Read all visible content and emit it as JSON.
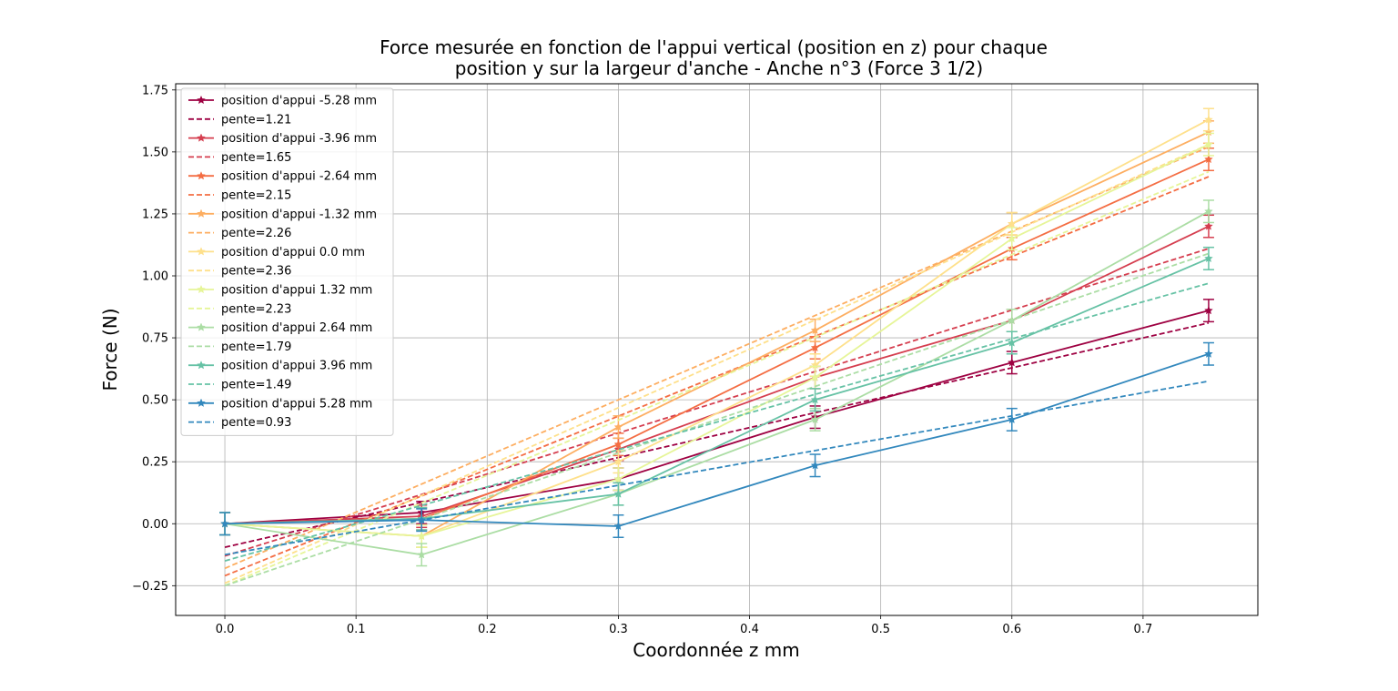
{
  "chart_data": {
    "type": "line",
    "title_lines": [
      "Force mesurée en fonction de l'appui vertical (position en z) pour chaque",
      "position y sur la largeur d'anche - Anche n°3 (Force 3 1/2)"
    ],
    "xlabel": "Coordonnée z mm",
    "ylabel": "Force (N)",
    "xlim": [
      -0.0375,
      0.7875
    ],
    "ylim": [
      -0.37,
      1.775
    ],
    "xticks": [
      0.0,
      0.1,
      0.2,
      0.3,
      0.4,
      0.5,
      0.6,
      0.7
    ],
    "xtick_labels": [
      "0.0",
      "0.1",
      "0.2",
      "0.3",
      "0.4",
      "0.5",
      "0.6",
      "0.7"
    ],
    "yticks": [
      -0.25,
      0.0,
      0.25,
      0.5,
      0.75,
      1.0,
      1.25,
      1.5,
      1.75
    ],
    "ytick_labels": [
      "−0.25",
      "0.00",
      "0.25",
      "0.50",
      "0.75",
      "1.00",
      "1.25",
      "1.50",
      "1.75"
    ],
    "grid": true,
    "legend_position": "upper-left",
    "x": [
      0.0,
      0.15,
      0.3,
      0.45,
      0.6,
      0.75
    ],
    "series": [
      {
        "name": "position d'appui -5.28 mm",
        "fit_label": "pente=1.21",
        "color": "#9e0142",
        "values": [
          0.0,
          0.045,
          0.18,
          0.43,
          0.65,
          0.86
        ],
        "errors": [
          0.045,
          0.045,
          0.045,
          0.045,
          0.045,
          0.045
        ],
        "fit": [
          -0.095,
          0.81
        ]
      },
      {
        "name": "position d'appui -3.96 mm",
        "fit_label": "pente=1.65",
        "color": "#d53e4f",
        "values": [
          0.0,
          0.03,
          0.3,
          0.59,
          0.82,
          1.2
        ],
        "errors": [
          0.045,
          0.045,
          0.045,
          0.045,
          0.045,
          0.045
        ],
        "fit": [
          -0.13,
          1.11
        ]
      },
      {
        "name": "position d'appui -2.64 mm",
        "fit_label": "pente=2.15",
        "color": "#f46d43",
        "values": [
          0.0,
          0.02,
          0.32,
          0.71,
          1.11,
          1.47
        ],
        "errors": [
          0.045,
          0.045,
          0.045,
          0.045,
          0.045,
          0.045
        ],
        "fit": [
          -0.21,
          1.4
        ]
      },
      {
        "name": "position d'appui -1.32 mm",
        "fit_label": "pente=2.26",
        "color": "#fdae61",
        "values": [
          0.0,
          -0.05,
          0.39,
          0.78,
          1.21,
          1.58
        ],
        "errors": [
          0.045,
          0.045,
          0.045,
          0.045,
          0.045,
          0.045
        ],
        "fit": [
          -0.18,
          1.52
        ]
      },
      {
        "name": "position d'appui 0.0 mm",
        "fit_label": "pente=2.36",
        "color": "#fee08b",
        "values": [
          0.0,
          -0.05,
          0.25,
          0.64,
          1.21,
          1.63
        ],
        "errors": [
          0.045,
          0.045,
          0.045,
          0.045,
          0.045,
          0.045
        ],
        "fit": [
          -0.24,
          1.53
        ]
      },
      {
        "name": "position d'appui 1.32 mm",
        "fit_label": "pente=2.23",
        "color": "#e6f598",
        "values": [
          0.0,
          -0.05,
          0.18,
          0.59,
          1.15,
          1.53
        ],
        "errors": [
          0.045,
          0.045,
          0.045,
          0.045,
          0.045,
          0.045
        ],
        "fit": [
          -0.25,
          1.42
        ]
      },
      {
        "name": "position d'appui 2.64 mm",
        "fit_label": "pente=1.79",
        "color": "#abdda4",
        "values": [
          0.0,
          -0.125,
          0.12,
          0.42,
          0.82,
          1.26
        ],
        "errors": [
          0.045,
          0.045,
          0.045,
          0.045,
          0.045,
          0.045
        ],
        "fit": [
          -0.25,
          1.09
        ]
      },
      {
        "name": "position d'appui 3.96 mm",
        "fit_label": "pente=1.49",
        "color": "#66c2a5",
        "values": [
          0.0,
          0.02,
          0.12,
          0.5,
          0.73,
          1.07
        ],
        "errors": [
          0.045,
          0.045,
          0.045,
          0.045,
          0.045,
          0.045
        ],
        "fit": [
          -0.15,
          0.97
        ]
      },
      {
        "name": "position d'appui 5.28 mm",
        "fit_label": "pente=0.93",
        "color": "#3288bd",
        "values": [
          0.0,
          0.015,
          -0.01,
          0.235,
          0.42,
          0.685
        ],
        "errors": [
          0.045,
          0.045,
          0.045,
          0.045,
          0.045,
          0.045
        ],
        "fit": [
          -0.125,
          0.575
        ]
      }
    ]
  }
}
